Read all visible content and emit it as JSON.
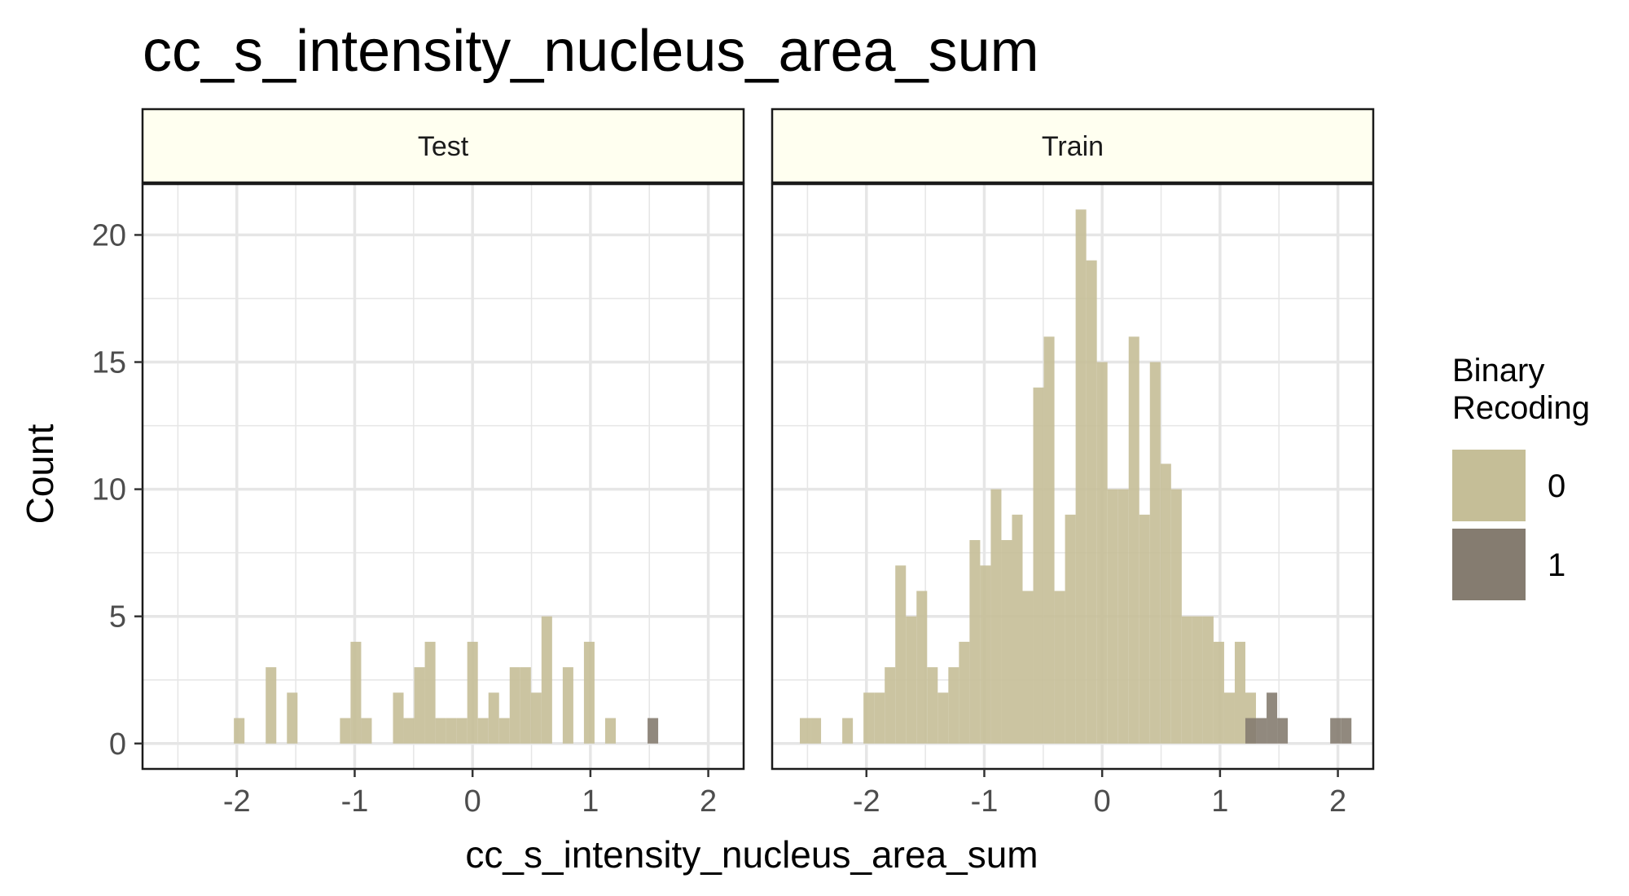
{
  "chart_data": {
    "type": "bar",
    "title": "cc_s_intensity_nucleus_area_sum",
    "xlabel": "cc_s_intensity_nucleus_area_sum",
    "ylabel": "Count",
    "xlim": [
      -2.8,
      2.3
    ],
    "ylim": [
      -1,
      22
    ],
    "x_ticks": [
      -2,
      -1,
      0,
      1,
      2
    ],
    "x_tick_labels": [
      "-2",
      "-1",
      "0",
      "1",
      "2"
    ],
    "y_ticks": [
      0,
      5,
      10,
      15,
      20
    ],
    "y_tick_labels": [
      "0",
      "5",
      "10",
      "15",
      "20"
    ],
    "grid": true,
    "bin_width": 0.09,
    "legend": {
      "title": [
        "Binary",
        "Recoding"
      ],
      "position": "right",
      "entries": [
        {
          "label": "0",
          "color": "#C5BE97"
        },
        {
          "label": "1",
          "color": "#857C70"
        }
      ]
    },
    "panels": [
      {
        "name": "Test",
        "series": [
          {
            "name": "0",
            "color": "#C5BE97",
            "x": [
              -1.98,
              -1.71,
              -1.53,
              -1.08,
              -0.99,
              -0.9,
              -0.63,
              -0.54,
              -0.45,
              -0.36,
              -0.27,
              -0.18,
              -0.09,
              0.0,
              0.09,
              0.18,
              0.27,
              0.36,
              0.45,
              0.54,
              0.63,
              0.81,
              0.99,
              1.17
            ],
            "values": [
              1,
              3,
              2,
              1,
              4,
              1,
              2,
              1,
              3,
              4,
              1,
              1,
              1,
              4,
              1,
              2,
              1,
              3,
              3,
              2,
              5,
              3,
              4,
              1
            ]
          },
          {
            "name": "1",
            "color": "#857C70",
            "x": [
              1.53
            ],
            "values": [
              1
            ]
          }
        ]
      },
      {
        "name": "Train",
        "series": [
          {
            "name": "0",
            "color": "#C5BE97",
            "x": [
              -2.52,
              -2.43,
              -2.16,
              -1.98,
              -1.89,
              -1.8,
              -1.71,
              -1.62,
              -1.53,
              -1.44,
              -1.35,
              -1.26,
              -1.17,
              -1.08,
              -0.99,
              -0.9,
              -0.81,
              -0.72,
              -0.63,
              -0.54,
              -0.45,
              -0.36,
              -0.27,
              -0.18,
              -0.09,
              0.0,
              0.09,
              0.18,
              0.27,
              0.36,
              0.45,
              0.54,
              0.63,
              0.72,
              0.81,
              0.9,
              0.99,
              1.08,
              1.17,
              1.26
            ],
            "values": [
              1,
              1,
              1,
              2,
              2,
              3,
              7,
              5,
              6,
              3,
              2,
              3,
              4,
              8,
              7,
              10,
              8,
              9,
              6,
              14,
              16,
              6,
              9,
              21,
              19,
              15,
              10,
              10,
              16,
              9,
              15,
              11,
              10,
              5,
              5,
              5,
              4,
              2,
              4,
              2
            ]
          },
          {
            "name": "1",
            "color": "#857C70",
            "x": [
              1.26,
              1.35,
              1.44,
              1.53,
              1.98,
              2.07
            ],
            "values": [
              1,
              1,
              2,
              1,
              1,
              1
            ]
          }
        ]
      }
    ]
  }
}
